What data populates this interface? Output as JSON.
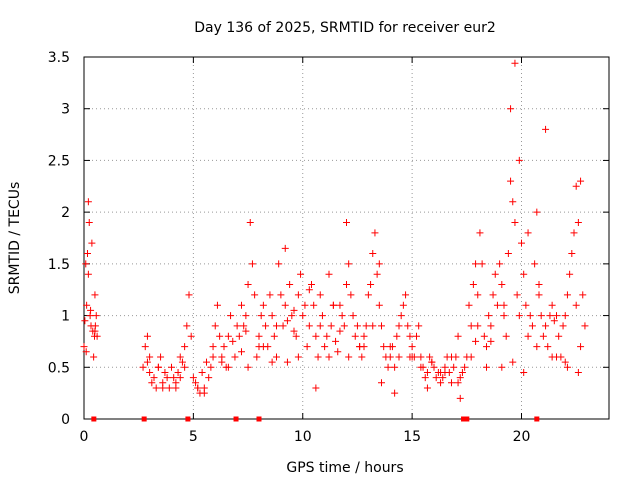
{
  "chart_data": {
    "type": "scatter",
    "title": "Day 136 of 2025, SRMTID for receiver eur2",
    "xlabel": "GPS time / hours",
    "ylabel": "SRMTID / TECUs",
    "xlim": [
      0,
      24
    ],
    "ylim": [
      0,
      3.5
    ],
    "x_ticks": [
      0,
      5,
      10,
      15,
      20
    ],
    "x_tick_labels": [
      "0",
      "5",
      "10",
      "15",
      "20"
    ],
    "y_ticks": [
      0,
      0.5,
      1,
      1.5,
      2,
      2.5,
      3,
      3.5
    ],
    "y_tick_labels": [
      "0",
      "0.5",
      "1",
      "1.5",
      "2",
      "2.5",
      "3",
      "3.5"
    ],
    "grid": true,
    "marker": "+",
    "series_color": "#ff0000",
    "series": [
      {
        "name": "SRMTID",
        "x": [
          0.0,
          0.04,
          0.08,
          0.12,
          0.16,
          0.2,
          0.24,
          0.28,
          0.32,
          0.36,
          0.4,
          0.44,
          0.48,
          0.52,
          0.56,
          0.6,
          2.7,
          2.8,
          2.9,
          3.0,
          3.1,
          3.2,
          3.3,
          3.4,
          3.5,
          3.6,
          3.7,
          3.8,
          3.9,
          4.0,
          4.1,
          4.2,
          4.3,
          4.4,
          4.5,
          4.6,
          4.7,
          4.8,
          4.9,
          5.0,
          5.1,
          5.2,
          5.3,
          5.4,
          5.5,
          5.6,
          5.7,
          5.8,
          5.9,
          6.0,
          6.1,
          6.2,
          6.3,
          6.4,
          6.5,
          6.6,
          6.7,
          6.8,
          6.9,
          7.0,
          7.1,
          7.2,
          7.3,
          7.4,
          7.5,
          7.6,
          7.7,
          7.8,
          7.9,
          8.0,
          8.1,
          8.2,
          8.3,
          8.4,
          8.5,
          8.6,
          8.7,
          8.8,
          8.9,
          9.0,
          9.1,
          9.2,
          9.3,
          9.4,
          9.5,
          9.6,
          9.7,
          9.8,
          9.9,
          10.0,
          10.1,
          10.2,
          10.3,
          10.4,
          10.5,
          10.6,
          10.7,
          10.8,
          10.9,
          11.0,
          11.1,
          11.2,
          11.3,
          11.4,
          11.5,
          11.6,
          11.7,
          11.8,
          11.9,
          12.0,
          12.1,
          12.2,
          12.3,
          12.4,
          12.5,
          12.6,
          12.7,
          12.8,
          12.9,
          13.0,
          13.1,
          13.2,
          13.3,
          13.4,
          13.5,
          13.6,
          13.7,
          13.8,
          13.9,
          14.0,
          14.1,
          14.2,
          14.3,
          14.4,
          14.5,
          14.6,
          14.7,
          14.8,
          14.9,
          15.0,
          15.1,
          15.2,
          15.3,
          15.4,
          15.5,
          15.6,
          15.7,
          15.8,
          15.9,
          16.0,
          16.1,
          16.2,
          16.3,
          16.4,
          16.5,
          16.6,
          16.7,
          16.8,
          16.9,
          17.0,
          17.1,
          17.2,
          17.3,
          17.4,
          17.5,
          17.6,
          17.7,
          17.8,
          17.9,
          18.0,
          18.1,
          18.2,
          18.3,
          18.4,
          18.5,
          18.6,
          18.7,
          18.8,
          18.9,
          19.0,
          19.1,
          19.2,
          19.3,
          19.4,
          19.5,
          19.6,
          19.7,
          19.8,
          19.9,
          20.0,
          20.1,
          20.2,
          20.3,
          20.4,
          20.5,
          20.6,
          20.7,
          20.8,
          20.9,
          21.0,
          21.1,
          21.2,
          21.3,
          21.4,
          21.5,
          21.6,
          21.7,
          21.8,
          21.9,
          22.0,
          22.1,
          22.2,
          22.3,
          22.4,
          22.5,
          22.6,
          22.7,
          22.8,
          22.9,
          0.1,
          0.3,
          0.5,
          3.0,
          3.4,
          4.2,
          4.6,
          5.5,
          6.3,
          7.2,
          7.5,
          8.2,
          8.8,
          9.3,
          9.6,
          10.3,
          10.8,
          11.2,
          11.7,
          12.0,
          12.6,
          13.2,
          13.5,
          14.0,
          14.4,
          14.9,
          15.4,
          15.9,
          16.3,
          16.8,
          17.1,
          17.7,
          18.0,
          18.6,
          19.2,
          19.5,
          19.7,
          19.9,
          20.3,
          20.8,
          21.1,
          21.6,
          22.1,
          22.5,
          22.7,
          0.2,
          0.5,
          2.9,
          3.6,
          4.4,
          5.2,
          5.9,
          6.6,
          7.4,
          8.0,
          8.6,
          9.2,
          9.8,
          10.6,
          11.4,
          12.1,
          12.8,
          13.6,
          14.2,
          15.0,
          15.7,
          16.5,
          17.2,
          17.9,
          18.4,
          19.1,
          19.6,
          20.1,
          20.7,
          21.4,
          22.0,
          22.6
        ],
        "y": [
          0.7,
          0.95,
          1.5,
          1.1,
          1.6,
          2.1,
          1.9,
          1.0,
          0.9,
          1.7,
          0.85,
          0.6,
          0.8,
          0.9,
          1.0,
          0.8,
          0.5,
          0.7,
          0.55,
          0.45,
          0.35,
          0.4,
          0.3,
          0.5,
          0.6,
          0.35,
          0.45,
          0.4,
          0.3,
          0.5,
          0.4,
          0.35,
          0.45,
          0.6,
          0.55,
          0.7,
          0.9,
          1.2,
          0.8,
          0.4,
          0.35,
          0.3,
          0.25,
          0.45,
          0.3,
          0.55,
          0.4,
          0.5,
          0.7,
          0.9,
          1.1,
          0.8,
          0.6,
          0.7,
          0.5,
          0.8,
          1.0,
          0.75,
          0.6,
          0.9,
          0.8,
          1.1,
          0.9,
          1.0,
          1.3,
          1.9,
          1.5,
          1.2,
          0.6,
          0.8,
          1.0,
          1.1,
          0.9,
          0.7,
          1.2,
          1.0,
          0.8,
          0.6,
          1.5,
          1.2,
          0.9,
          1.1,
          0.95,
          1.3,
          1.0,
          0.85,
          0.8,
          1.2,
          1.4,
          1.0,
          1.1,
          0.7,
          0.9,
          1.3,
          1.1,
          0.8,
          0.6,
          0.9,
          1.0,
          0.7,
          0.8,
          0.6,
          0.9,
          1.1,
          0.75,
          0.65,
          0.85,
          1.0,
          0.9,
          1.9,
          1.5,
          1.2,
          1.0,
          0.8,
          0.9,
          0.7,
          0.6,
          0.8,
          0.9,
          1.2,
          1.3,
          1.6,
          1.8,
          1.4,
          1.1,
          0.9,
          0.7,
          0.6,
          0.5,
          0.6,
          0.7,
          0.5,
          0.8,
          0.9,
          1.0,
          1.1,
          1.2,
          0.9,
          0.8,
          0.7,
          0.6,
          0.8,
          0.9,
          0.6,
          0.5,
          0.4,
          0.45,
          0.6,
          0.55,
          0.5,
          0.4,
          0.45,
          0.35,
          0.4,
          0.5,
          0.6,
          0.45,
          0.35,
          0.5,
          0.6,
          0.8,
          0.4,
          0.45,
          0.5,
          0.6,
          1.1,
          0.9,
          1.3,
          1.5,
          1.2,
          1.8,
          1.5,
          0.8,
          0.7,
          1.0,
          0.9,
          1.2,
          1.4,
          1.1,
          1.5,
          1.3,
          1.0,
          0.8,
          1.6,
          2.3,
          2.1,
          1.9,
          1.2,
          1.0,
          1.7,
          1.4,
          1.1,
          1.8,
          1.0,
          0.9,
          1.5,
          2.0,
          1.2,
          1.0,
          0.8,
          0.9,
          0.7,
          1.0,
          1.1,
          0.95,
          1.0,
          0.8,
          0.6,
          0.9,
          1.0,
          1.2,
          1.4,
          1.6,
          1.8,
          1.1,
          1.9,
          2.3,
          1.2,
          0.9,
          0.65,
          1.05,
          0.85,
          0.6,
          0.5,
          0.3,
          0.5,
          0.25,
          0.55,
          0.65,
          0.5,
          0.7,
          0.9,
          0.55,
          1.05,
          1.25,
          1.2,
          1.4,
          1.1,
          1.3,
          0.7,
          0.9,
          1.5,
          0.7,
          0.6,
          0.6,
          0.5,
          0.55,
          0.45,
          0.6,
          0.35,
          0.6,
          0.9,
          0.75,
          1.1,
          3.0,
          3.44,
          2.5,
          0.8,
          1.3,
          2.8,
          0.6,
          0.5,
          2.25,
          0.7,
          1.4,
          1.2,
          0.8,
          0.3,
          0.4,
          0.3,
          0.6,
          0.5,
          0.85,
          0.7,
          0.55,
          1.65,
          0.6,
          0.3,
          1.1,
          0.6,
          0.7,
          0.35,
          0.25,
          0.6,
          0.3,
          0.45,
          0.2,
          0.75,
          0.5,
          0.5,
          0.55,
          0.45,
          0.7,
          0.6,
          0.55,
          0.45
        ]
      }
    ],
    "flag_markers": {
      "name": "gaps",
      "x": [
        0.45,
        2.75,
        4.75,
        6.95,
        8.0,
        17.35,
        17.5,
        20.7
      ],
      "y": [
        0,
        0,
        0,
        0,
        0,
        0,
        0,
        0
      ]
    }
  }
}
